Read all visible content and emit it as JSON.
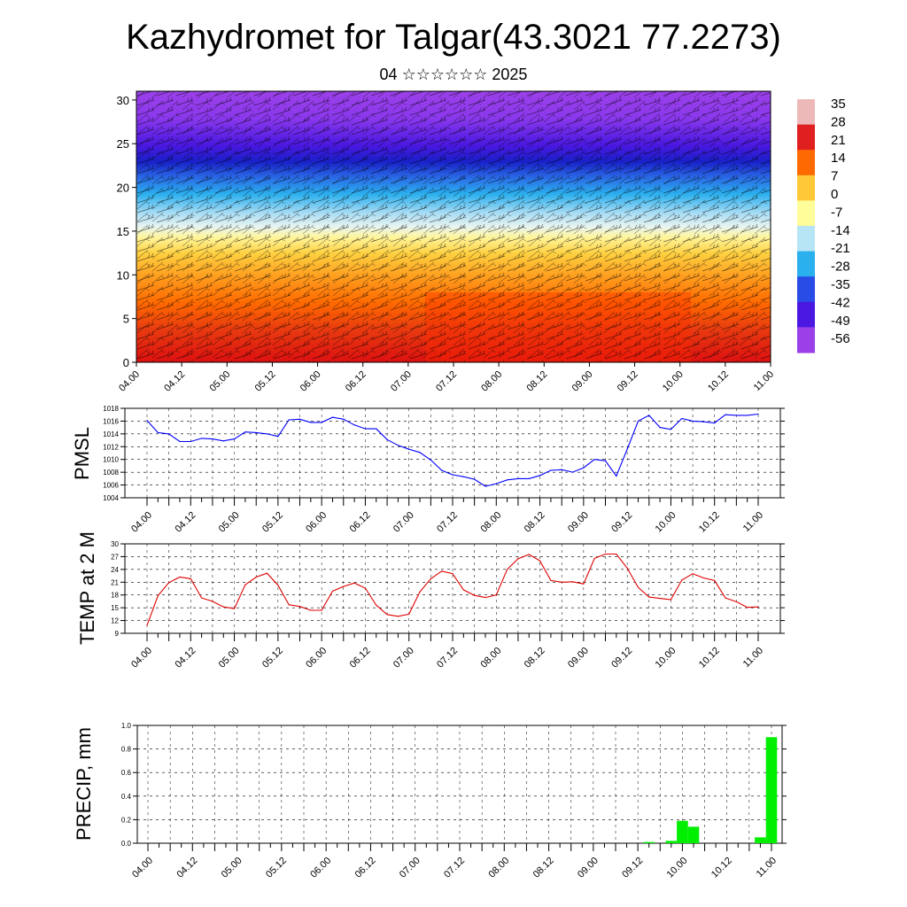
{
  "title": "Kazhydromet for Talgar(43.3021 77.2273)",
  "subtitle": "04 ☆☆☆☆☆☆ 2025",
  "time_labels": [
    "04.00",
    "04.12",
    "05.00",
    "05.12",
    "06.00",
    "06.12",
    "07.00",
    "07.12",
    "08.00",
    "08.12",
    "09.00",
    "09.12",
    "10.00",
    "10.12",
    "11.00"
  ],
  "chart_data": [
    {
      "type": "heatmap",
      "name": "cross-section",
      "x_labels": [
        "04.00",
        "04.12",
        "05.00",
        "05.12",
        "06.00",
        "06.12",
        "07.00",
        "07.12",
        "08.00",
        "08.12",
        "09.00",
        "09.12",
        "10.00",
        "10.12",
        "11.00"
      ],
      "y_ticks": [
        0,
        5,
        10,
        15,
        20,
        25,
        30
      ],
      "ylim": [
        0,
        31
      ],
      "colorbar_labels": [
        "35",
        "28",
        "21",
        "14",
        "7",
        "0",
        "-7",
        "-14",
        "-21",
        "-28",
        "-35",
        "-42",
        "-49",
        "-56"
      ],
      "colormap": [
        "#ecb8b8",
        "#e02020",
        "#ff6a00",
        "#ffc838",
        "#fffc9a",
        "#b7e5f5",
        "#2bb0ee",
        "#2a4ce6",
        "#4a18e0",
        "#9b40e8"
      ],
      "wind_barbs": true
    },
    {
      "type": "line",
      "ylabel": "PMSL",
      "ylim": [
        1004,
        1018
      ],
      "y_ticks": [
        1004,
        1006,
        1008,
        1010,
        1012,
        1014,
        1016,
        1018
      ],
      "color": "#0000ff",
      "values": [
        1016.1,
        1014.2,
        1014.0,
        1012.8,
        1012.8,
        1013.3,
        1013.2,
        1012.9,
        1013.2,
        1014.3,
        1014.2,
        1014.0,
        1013.6,
        1016.2,
        1016.3,
        1015.8,
        1015.8,
        1016.6,
        1016.3,
        1015.4,
        1014.8,
        1014.8,
        1013.1,
        1012.2,
        1011.6,
        1011.1,
        1009.9,
        1008.3,
        1007.6,
        1007.3,
        1006.9,
        1005.8,
        1006.2,
        1006.8,
        1007.0,
        1007.0,
        1007.5,
        1008.3,
        1008.4,
        1008.0,
        1008.7,
        1010.0,
        1009.8,
        1007.4,
        1011.6,
        1016.0,
        1016.9,
        1015.0,
        1014.7,
        1016.4,
        1016.0,
        1015.9,
        1015.7,
        1017.0,
        1016.9,
        1016.9,
        1017.1
      ]
    },
    {
      "type": "line",
      "ylabel": "TEMP at 2 M",
      "ylim": [
        9,
        30
      ],
      "y_ticks": [
        9,
        12,
        15,
        18,
        21,
        24,
        27,
        30
      ],
      "color": "#e00000",
      "values": [
        10.9,
        17.8,
        20.9,
        22.2,
        21.8,
        17.3,
        16.5,
        15.2,
        14.8,
        20.4,
        22.2,
        23.1,
        20.3,
        15.7,
        15.3,
        14.4,
        14.4,
        18.9,
        20.0,
        20.8,
        19.6,
        15.6,
        13.4,
        13.0,
        13.5,
        18.7,
        21.8,
        23.6,
        23.0,
        19.2,
        17.9,
        17.4,
        18.0,
        24.0,
        26.5,
        27.5,
        26.0,
        21.4,
        21.0,
        21.1,
        20.6,
        26.6,
        27.6,
        27.6,
        24.3,
        19.8,
        17.5,
        17.2,
        16.9,
        21.5,
        23.0,
        22.0,
        21.4,
        17.3,
        16.4,
        15.1,
        15.2
      ]
    },
    {
      "type": "bar",
      "ylabel": "PRECIP, mm",
      "ylim": [
        0,
        1.0
      ],
      "y_ticks": [
        "0.0",
        "0.2",
        "0.4",
        "0.6",
        "0.8",
        "1.0"
      ],
      "color": "#00ee00",
      "values": [
        0,
        0,
        0,
        0,
        0,
        0,
        0,
        0,
        0,
        0,
        0,
        0,
        0,
        0,
        0,
        0,
        0,
        0,
        0,
        0,
        0,
        0,
        0,
        0,
        0,
        0,
        0,
        0,
        0,
        0,
        0,
        0,
        0,
        0,
        0,
        0,
        0,
        0,
        0,
        0,
        0,
        0,
        0,
        0,
        0,
        0.01,
        0,
        0.02,
        0.19,
        0.14,
        0,
        0,
        0,
        0,
        0,
        0.05,
        0.9
      ]
    }
  ]
}
